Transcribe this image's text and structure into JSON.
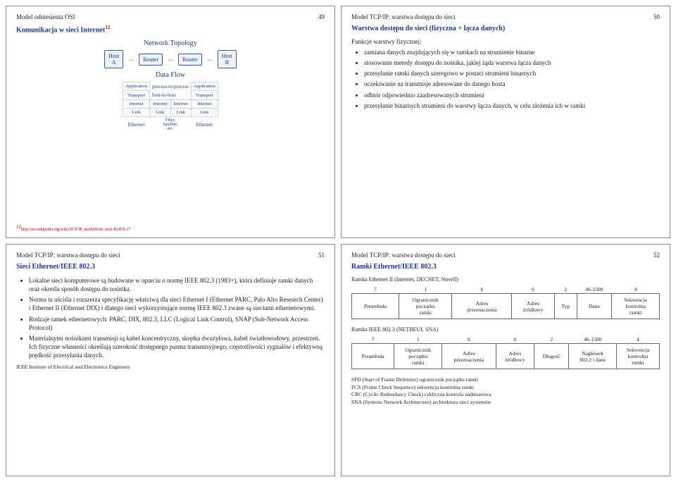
{
  "slide49": {
    "section": "Model odniesienia OSI",
    "num": "49",
    "title": "Komunikacja w sieci Internet",
    "title_sup": "12",
    "diag": {
      "topo_title": "Network Topology",
      "hostA": "Host\nA",
      "router1": "Router",
      "router2": "Router",
      "hostB": "Host\nB",
      "flow_title": "Data Flow",
      "app": "Application",
      "p2p": "process-to-process",
      "trans": "Transport",
      "h2h": "host-to-host",
      "internet": "Internet",
      "link": "Link",
      "eth": "Ethernet",
      "fiber": "Fiber,\nSatellite,\netc."
    },
    "footnote": "http://en.wikipedia.org/wiki/TCP/IP_model#cite_note-R3439-17",
    "footnote_num": "12"
  },
  "slide50": {
    "section": "Model TCP/IP: warstwa dostępu do sieci",
    "num": "50",
    "title": "Warstwa dostępu do sieci (fizyczna + łącza danych)",
    "subtitle": "Funkcje warstwy fizycznej:",
    "items": [
      "zamiana danych znajdujących się w ramkach na strumienie binarne",
      "stosowanie metody dostępu do nośnika, jakiej żąda warstwa łącza danych",
      "przesyłanie ramki danych szeregowo w postaci strumieni binarnych",
      "oczekiwanie na transmisje adresowane do danego hosta",
      "odbiór odpowiednio zaadresowanych strumieni",
      "przesyłanie binarnych strumieni do warstwy łącza danych, w celu złożenia ich w ramki"
    ]
  },
  "slide51": {
    "section": "Model TCP/IP: warstwa dostępu do sieci",
    "num": "51",
    "title": "Sieci Ethernet/IEEE 802.3",
    "items": [
      "Lokalne sieci komputerowe są budowane w oparciu o normę IEEE 802.3 (1983+), która definiuje ramki danych oraz określa sposób dostępu do nośnika.",
      "Norma ta uściśla i rozszerza specyfikację właściwą dla sieci Ethernet I (Ethernet PARC, Palo Alto Research Center) i Ethernet II (Ethernet DIX) i dlatego sieci wykorzystujące normę IEEE 802.3 zwane są sieciami ethernetowymi.",
      "Rodzaje ramek ethernetowych: PARC, DIX, 802.3, LLC (Logical Link Control), SNAP (Sub-Network Access Protocol)",
      "Materialnymi nośnikami transmisji są kabel koncentryczny, skrętka dwużyłowa, kabel światłowodowy, przestrzeń. Ich fizyczne własności określają szerokość dostępnego pasma transmisyjnego, częstotliwości sygnałów i efektywną prędkość przesyłania danych."
    ],
    "footer": "IEEE Institute of Electrical and Electronics Engineers"
  },
  "slide52": {
    "section": "Model TCP/IP: warstwa dostępu do sieci",
    "num": "52",
    "title": "Ramki Ethernet/IEEE 802.3",
    "t1_label": "Ramka Ethernet II (Internet, DECNET, Novell)",
    "t2_label": "Ramka IEEE 802.3 (NETBEUI, SNA)",
    "table1": {
      "widths": [
        "7",
        "1",
        "6",
        "6",
        "2",
        "46-1500",
        "4"
      ],
      "cells": [
        "Preambuła",
        "Ogranicznik\npoczątku\nramki",
        "Adres\nprzeznaczenia",
        "Adres\nźródłowy",
        "Typ",
        "Dane",
        "Sekwencja\nkontrolna\nramki"
      ]
    },
    "table2": {
      "widths": [
        "7",
        "1",
        "6",
        "6",
        "2",
        "46-1500",
        "4"
      ],
      "cells": [
        "Preambuła",
        "Ogranicznik\npoczątku\nramki",
        "Adres\nprzeznaczenia",
        "Adres\nźródłowy",
        "Długość",
        "Nagłówek\n802.2 i dane",
        "Sekwencja\nkontrolna\nramki"
      ]
    },
    "defs": [
      "SFD (Start of Frame Delimiter) ogranicznik początku ramki",
      "FCS (Frame Check Sequence) sekwencja kontrolna ramki",
      "CRC (Cyclic Redundancy Check) cykliczna kontrola nadmiarowa",
      "SNA (Systems Network Architecture) architektura sieci systemów"
    ]
  }
}
